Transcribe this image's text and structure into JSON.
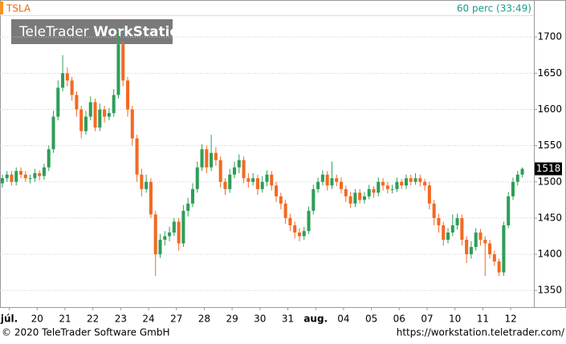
{
  "chart_data": {
    "type": "candlestick",
    "symbol": "TSLA",
    "interval": "60 perc (33:49)",
    "watermark": {
      "brand": "TeleTrader",
      "product": "WorkStation"
    },
    "footer_left": "© 2020 TeleTrader Software GmbH",
    "footer_right": "https://workstation.teletrader.com/",
    "up_color": "#2e9e58",
    "down_color": "#f26a22",
    "grid": true,
    "ylim": [
      1327,
      1729
    ],
    "yticks": [
      1350,
      1400,
      1450,
      1500,
      1550,
      1600,
      1650,
      1700
    ],
    "xlim": [
      -0.5,
      114.5
    ],
    "xticks": [
      {
        "value": 1.5,
        "label": "júl."
      },
      {
        "value": 7.5,
        "label": "20"
      },
      {
        "value": 13.5,
        "label": "21"
      },
      {
        "value": 19.5,
        "label": "22"
      },
      {
        "value": 25.5,
        "label": "23"
      },
      {
        "value": 31.5,
        "label": "24"
      },
      {
        "value": 37.5,
        "label": "27"
      },
      {
        "value": 43.5,
        "label": "28"
      },
      {
        "value": 49.5,
        "label": "29"
      },
      {
        "value": 55.5,
        "label": "30"
      },
      {
        "value": 61.5,
        "label": "31"
      },
      {
        "value": 67.5,
        "label": "aug."
      },
      {
        "value": 73.5,
        "label": "04"
      },
      {
        "value": 79.5,
        "label": "05"
      },
      {
        "value": 85.5,
        "label": "06"
      },
      {
        "value": 91.5,
        "label": "07"
      },
      {
        "value": 97.5,
        "label": "10"
      },
      {
        "value": 103.5,
        "label": "11"
      },
      {
        "value": 109.5,
        "label": "12"
      }
    ],
    "open": [
      1498,
      1505,
      1510,
      1500,
      1515,
      1510,
      1505,
      1505,
      1512,
      1508,
      1520,
      1545,
      1590,
      1630,
      1650,
      1640,
      1620,
      1600,
      1570,
      1590,
      1610,
      1575,
      1600,
      1590,
      1595,
      1620,
      1690,
      1640,
      1600,
      1560,
      1510,
      1490,
      1500,
      1455,
      1400,
      1420,
      1425,
      1430,
      1445,
      1415,
      1460,
      1470,
      1490,
      1520,
      1545,
      1520,
      1540,
      1530,
      1500,
      1490,
      1510,
      1520,
      1530,
      1505,
      1500,
      1505,
      1490,
      1500,
      1510,
      1495,
      1480,
      1470,
      1450,
      1440,
      1430,
      1425,
      1432,
      1460,
      1490,
      1500,
      1510,
      1495,
      1505,
      1500,
      1490,
      1480,
      1470,
      1485,
      1475,
      1480,
      1490,
      1485,
      1500,
      1495,
      1490,
      1490,
      1500,
      1495,
      1505,
      1500,
      1505,
      1500,
      1495,
      1470,
      1450,
      1440,
      1420,
      1430,
      1440,
      1450,
      1420,
      1400,
      1410,
      1430,
      1420,
      1415,
      1400,
      1390,
      1375,
      1440,
      1480,
      1500,
      1510
    ],
    "high": [
      1510,
      1515,
      1515,
      1520,
      1520,
      1515,
      1510,
      1518,
      1516,
      1525,
      1550,
      1598,
      1640,
      1675,
      1658,
      1645,
      1625,
      1605,
      1598,
      1618,
      1615,
      1608,
      1605,
      1602,
      1628,
      1710,
      1695,
      1645,
      1605,
      1565,
      1518,
      1510,
      1505,
      1460,
      1428,
      1432,
      1438,
      1450,
      1450,
      1468,
      1478,
      1498,
      1528,
      1552,
      1550,
      1565,
      1548,
      1535,
      1505,
      1518,
      1528,
      1538,
      1535,
      1512,
      1512,
      1510,
      1508,
      1516,
      1515,
      1500,
      1485,
      1475,
      1456,
      1445,
      1436,
      1438,
      1466,
      1496,
      1506,
      1516,
      1515,
      1528,
      1510,
      1506,
      1495,
      1486,
      1490,
      1490,
      1486,
      1496,
      1494,
      1506,
      1505,
      1500,
      1496,
      1506,
      1504,
      1510,
      1510,
      1512,
      1510,
      1504,
      1500,
      1475,
      1456,
      1445,
      1436,
      1455,
      1456,
      1455,
      1425,
      1418,
      1436,
      1435,
      1425,
      1420,
      1405,
      1394,
      1445,
      1486,
      1506,
      1515,
      1520
    ],
    "low": [
      1492,
      1500,
      1495,
      1495,
      1505,
      1500,
      1498,
      1500,
      1502,
      1503,
      1515,
      1540,
      1585,
      1625,
      1632,
      1612,
      1590,
      1560,
      1565,
      1585,
      1570,
      1570,
      1582,
      1585,
      1590,
      1615,
      1632,
      1590,
      1550,
      1500,
      1480,
      1485,
      1450,
      1370,
      1395,
      1412,
      1418,
      1425,
      1405,
      1410,
      1452,
      1465,
      1485,
      1515,
      1512,
      1515,
      1522,
      1492,
      1482,
      1485,
      1505,
      1512,
      1498,
      1492,
      1495,
      1482,
      1485,
      1494,
      1488,
      1472,
      1462,
      1442,
      1432,
      1422,
      1418,
      1420,
      1428,
      1455,
      1485,
      1495,
      1488,
      1490,
      1494,
      1484,
      1472,
      1464,
      1465,
      1470,
      1470,
      1476,
      1478,
      1480,
      1488,
      1484,
      1484,
      1486,
      1490,
      1490,
      1495,
      1496,
      1494,
      1488,
      1462,
      1440,
      1430,
      1412,
      1415,
      1425,
      1434,
      1412,
      1388,
      1394,
      1405,
      1412,
      1370,
      1394,
      1384,
      1370,
      1370,
      1436,
      1475,
      1495,
      1506
    ],
    "close": [
      1505,
      1510,
      1500,
      1515,
      1510,
      1505,
      1505,
      1512,
      1508,
      1520,
      1545,
      1590,
      1630,
      1650,
      1640,
      1620,
      1600,
      1570,
      1590,
      1610,
      1575,
      1600,
      1590,
      1595,
      1620,
      1690,
      1640,
      1600,
      1560,
      1510,
      1490,
      1500,
      1455,
      1400,
      1420,
      1425,
      1430,
      1445,
      1415,
      1460,
      1470,
      1490,
      1520,
      1545,
      1520,
      1540,
      1530,
      1500,
      1490,
      1510,
      1520,
      1530,
      1505,
      1500,
      1505,
      1490,
      1500,
      1510,
      1495,
      1480,
      1470,
      1450,
      1440,
      1430,
      1425,
      1432,
      1460,
      1490,
      1500,
      1510,
      1495,
      1505,
      1500,
      1490,
      1480,
      1470,
      1485,
      1475,
      1480,
      1490,
      1485,
      1500,
      1495,
      1490,
      1490,
      1500,
      1495,
      1505,
      1500,
      1505,
      1500,
      1495,
      1470,
      1450,
      1440,
      1420,
      1430,
      1440,
      1450,
      1420,
      1400,
      1410,
      1430,
      1420,
      1415,
      1400,
      1390,
      1375,
      1440,
      1480,
      1500,
      1510,
      1518
    ]
  }
}
